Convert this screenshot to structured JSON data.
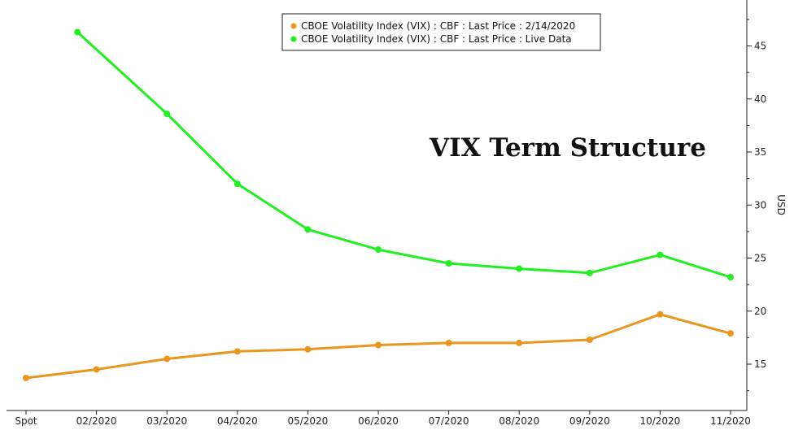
{
  "chart_data": {
    "type": "line",
    "title": "VIX Term Structure",
    "xlabel": "",
    "ylabel": "USD",
    "categories": [
      "Spot",
      "02/2020",
      "03/2020",
      "04/2020",
      "05/2020",
      "06/2020",
      "07/2020",
      "08/2020",
      "09/2020",
      "10/2020",
      "11/2020"
    ],
    "yticks": [
      15,
      20,
      25,
      30,
      35,
      40,
      45
    ],
    "ylim": [
      11.5,
      49
    ],
    "grid": false,
    "legend_position": "top-center",
    "y_axis_side": "right",
    "series": [
      {
        "name": "CBOE Volatility Index (VIX) : CBF : Last Price : 2/14/2020",
        "color": "#e8961e",
        "x_offset": 0,
        "values": [
          13.7,
          14.5,
          15.5,
          16.2,
          16.4,
          16.8,
          17.0,
          17.0,
          17.3,
          19.7,
          17.9
        ]
      },
      {
        "name": "CBOE Volatility Index (VIX) : CBF : Last Price : Live Data",
        "color": "#22ee22",
        "x_offset": -0.27,
        "values": [
          null,
          46.3,
          38.6,
          32.0,
          27.7,
          25.8,
          24.5,
          24.0,
          23.6,
          25.3,
          23.2
        ]
      }
    ]
  }
}
